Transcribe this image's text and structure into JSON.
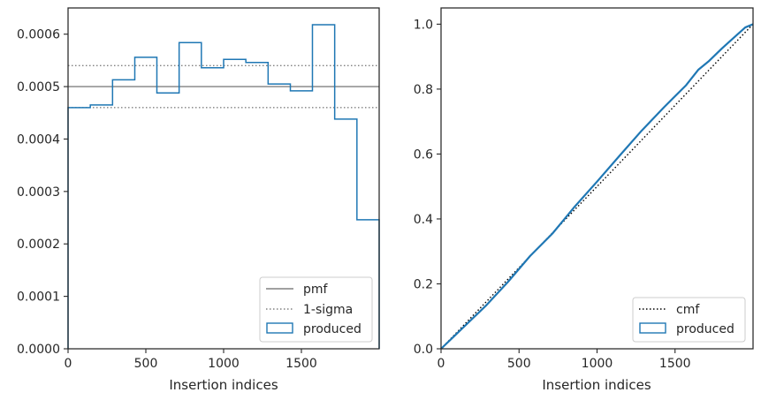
{
  "chart_data": [
    {
      "type": "line",
      "title": "",
      "xlabel": "Insertion indices",
      "ylabel": "",
      "xlim": [
        0,
        2000
      ],
      "ylim": [
        0,
        0.00065
      ],
      "xticks": [
        0,
        500,
        1000,
        1500
      ],
      "xtick_labels": [
        "0",
        "500",
        "1000",
        "1500"
      ],
      "yticks": [
        0,
        0.0001,
        0.0002,
        0.0003,
        0.0004,
        0.0005,
        0.0006
      ],
      "ytick_labels": [
        "0.0000",
        "0.0001",
        "0.0002",
        "0.0003",
        "0.0004",
        "0.0005",
        "0.0006"
      ],
      "grid": false,
      "legend_position": "lower-right",
      "series": [
        {
          "name": "pmf",
          "kind": "hline",
          "y": 0.0005,
          "color": "#808080",
          "style": "solid"
        },
        {
          "name": "1-sigma",
          "kind": "hlines",
          "y": [
            0.00054,
            0.00046
          ],
          "color": "#808080",
          "style": "dotted"
        },
        {
          "name": "produced",
          "kind": "step-histogram",
          "color": "#1f77b4",
          "bin_edges": [
            0,
            143,
            286,
            429,
            571,
            714,
            857,
            1000,
            1143,
            1286,
            1429,
            1571,
            1714,
            1857,
            2000
          ],
          "values": [
            0.00046,
            0.000465,
            0.000513,
            0.000556,
            0.000488,
            0.000584,
            0.000536,
            0.000552,
            0.000546,
            0.000505,
            0.000492,
            0.000618,
            0.000438,
            0.000246
          ]
        }
      ]
    },
    {
      "type": "line",
      "title": "",
      "xlabel": "Insertion indices",
      "ylabel": "",
      "xlim": [
        0,
        2000
      ],
      "ylim": [
        0,
        1.05
      ],
      "xticks": [
        0,
        500,
        1000,
        1500
      ],
      "xtick_labels": [
        "0",
        "500",
        "1000",
        "1500"
      ],
      "yticks": [
        0,
        0.2,
        0.4,
        0.6,
        0.8,
        1.0
      ],
      "ytick_labels": [
        "0.0",
        "0.2",
        "0.4",
        "0.6",
        "0.8",
        "1.0"
      ],
      "grid": false,
      "legend_position": "lower-right",
      "series": [
        {
          "name": "cmf",
          "kind": "line",
          "color": "#000000",
          "style": "dotted",
          "x": [
            0,
            2000
          ],
          "y": [
            0,
            1.0
          ]
        },
        {
          "name": "produced",
          "kind": "line",
          "color": "#1f77b4",
          "style": "solid",
          "x": [
            0,
            143,
            286,
            429,
            571,
            714,
            857,
            1000,
            1143,
            1286,
            1429,
            1571,
            1650,
            1714,
            1800,
            1857,
            1950,
            2000
          ],
          "y": [
            0,
            0.066,
            0.132,
            0.206,
            0.286,
            0.355,
            0.438,
            0.515,
            0.594,
            0.672,
            0.744,
            0.812,
            0.86,
            0.885,
            0.925,
            0.95,
            0.99,
            1.0
          ]
        }
      ]
    }
  ]
}
